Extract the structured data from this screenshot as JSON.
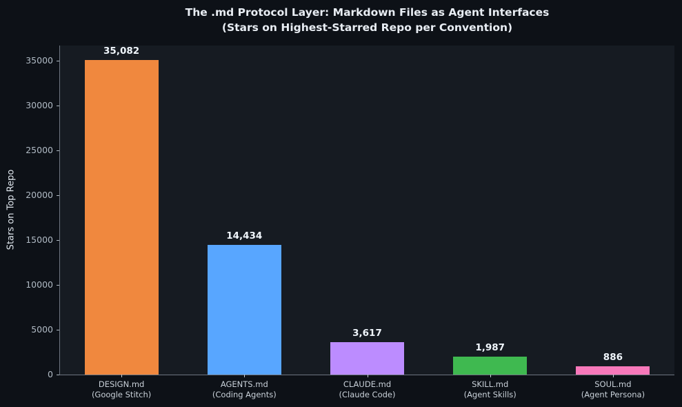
{
  "chart": {
    "title_line1": "The .md Protocol Layer: Markdown Files as Agent Interfaces",
    "title_line2": "(Stars on Highest-Starred Repo per Convention)",
    "ylabel": "Stars on Top Repo"
  },
  "chart_data": {
    "type": "bar",
    "title": "The .md Protocol Layer: Markdown Files as Agent Interfaces",
    "subtitle": "(Stars on Highest-Starred Repo per Convention)",
    "xlabel": "",
    "ylabel": "Stars on Top Repo",
    "categories": [
      "DESIGN.md\n(Google Stitch)",
      "AGENTS.md\n(Coding Agents)",
      "CLAUDE.md\n(Claude Code)",
      "SKILL.md\n(Agent Skills)",
      "SOUL.md\n(Agent Persona)"
    ],
    "values": [
      35082,
      14434,
      3617,
      1987,
      886
    ],
    "value_labels": [
      "35,082",
      "14,434",
      "3,617",
      "1,987",
      "886"
    ],
    "bar_colors": [
      "#f0883e",
      "#58a6ff",
      "#bc8cff",
      "#3fb950",
      "#f778ba"
    ],
    "yticks": [
      0,
      5000,
      10000,
      15000,
      20000,
      25000,
      30000,
      35000
    ],
    "ylim": [
      0,
      36700
    ],
    "grid": false,
    "legend_position": "none",
    "background_color": "#0d1117",
    "plot_background_color": "#161b22"
  }
}
